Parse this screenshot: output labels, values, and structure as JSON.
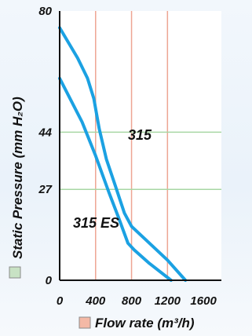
{
  "chart_data": {
    "type": "line",
    "xlabel": "Flow rate (m³/h)",
    "ylabel": "Static Pressure (mm H₂O)",
    "xlim": [
      0,
      1800
    ],
    "ylim": [
      0,
      80
    ],
    "x_ticks": [
      "0",
      "400",
      "800",
      "1200",
      "1600"
    ],
    "x_tick_values": [
      0,
      400,
      800,
      1200,
      1600
    ],
    "y_ticks": [
      "0",
      "27",
      "44",
      "80"
    ],
    "y_tick_values": [
      0,
      27,
      44,
      80
    ],
    "grid": {
      "vertical": [
        400,
        800,
        1200
      ],
      "horizontal": [
        27,
        44
      ]
    },
    "colors": {
      "plot_background": "#ffffff",
      "vertical_grid": "#eda593",
      "horizontal_grid": "#a8d7a4",
      "series_line": "#1ba1e2",
      "x_legend_swatch": "#f4b9a6",
      "y_legend_swatch": "#c8e2c4"
    },
    "series": [
      {
        "name": "315",
        "points": [
          [
            0,
            75
          ],
          [
            200,
            66
          ],
          [
            310,
            60
          ],
          [
            380,
            54
          ],
          [
            440,
            45
          ],
          [
            520,
            36
          ],
          [
            620,
            28
          ],
          [
            720,
            20
          ],
          [
            800,
            16
          ],
          [
            1000,
            11
          ],
          [
            1200,
            6
          ],
          [
            1400,
            0
          ]
        ]
      },
      {
        "name": "315 ES",
        "points": [
          [
            0,
            60
          ],
          [
            250,
            47
          ],
          [
            400,
            37
          ],
          [
            550,
            26
          ],
          [
            650,
            19
          ],
          [
            760,
            11
          ],
          [
            830,
            9
          ],
          [
            1000,
            5
          ],
          [
            1240,
            0
          ]
        ]
      }
    ]
  }
}
